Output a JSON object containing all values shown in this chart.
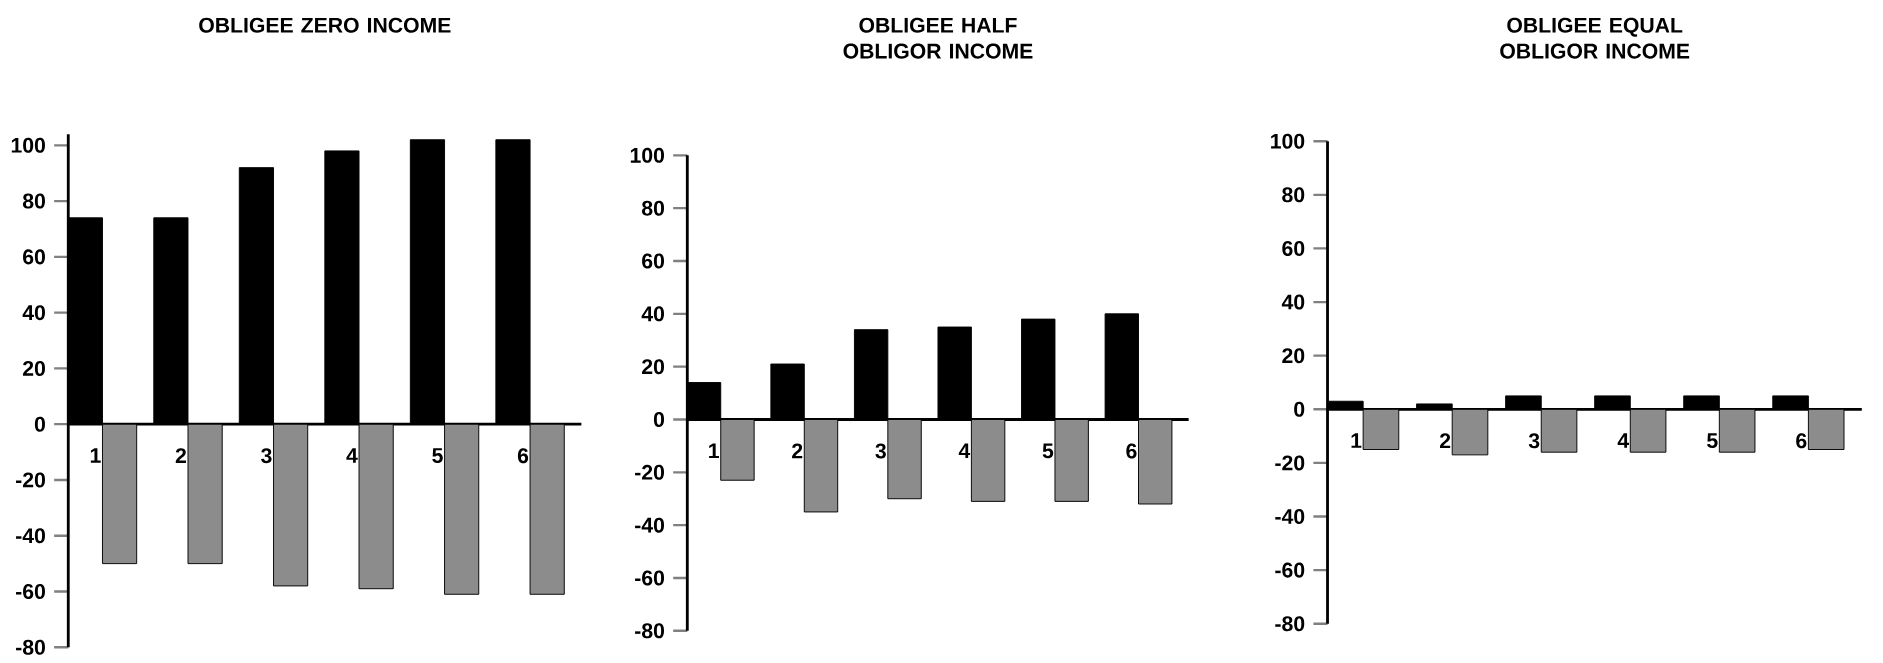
{
  "chart_data": [
    {
      "type": "bar",
      "title": "OBLIGEE ZERO INCOME",
      "categories": [
        "1",
        "2",
        "3",
        "4",
        "5",
        "6"
      ],
      "ylim": [
        -80,
        104
      ],
      "yticks": [
        -80,
        -60,
        -40,
        -20,
        0,
        20,
        40,
        60,
        80,
        100
      ],
      "series": [
        {
          "color": "#000000",
          "values": [
            74,
            74,
            92,
            98,
            102,
            102
          ]
        },
        {
          "color": "#8c8c8c",
          "values": [
            -50,
            -50,
            -58,
            -59,
            -61,
            -61
          ]
        }
      ]
    },
    {
      "type": "bar",
      "title": "OBLIGEE HALF OBLIGOR INCOME",
      "categories": [
        "1",
        "2",
        "3",
        "4",
        "5",
        "6"
      ],
      "ylim": [
        -80,
        100
      ],
      "yticks": [
        -80,
        -60,
        -40,
        -20,
        0,
        20,
        40,
        60,
        80,
        100
      ],
      "series": [
        {
          "color": "#000000",
          "values": [
            14,
            21,
            34,
            35,
            38,
            40
          ]
        },
        {
          "color": "#8c8c8c",
          "values": [
            -23,
            -35,
            -30,
            -31,
            -31,
            -32
          ]
        }
      ]
    },
    {
      "type": "bar",
      "title": "OBLIGEE EQUAL OBLIGOR INCOME",
      "categories": [
        "1",
        "2",
        "3",
        "4",
        "5",
        "6"
      ],
      "ylim": [
        -80,
        100
      ],
      "yticks": [
        -80,
        -60,
        -40,
        -20,
        0,
        20,
        40,
        60,
        80,
        100
      ],
      "series": [
        {
          "color": "#000000",
          "values": [
            3,
            2,
            5,
            5,
            5,
            5
          ]
        },
        {
          "color": "#8c8c8c",
          "values": [
            -15,
            -17,
            -16,
            -16,
            -16,
            -15
          ]
        }
      ]
    }
  ]
}
